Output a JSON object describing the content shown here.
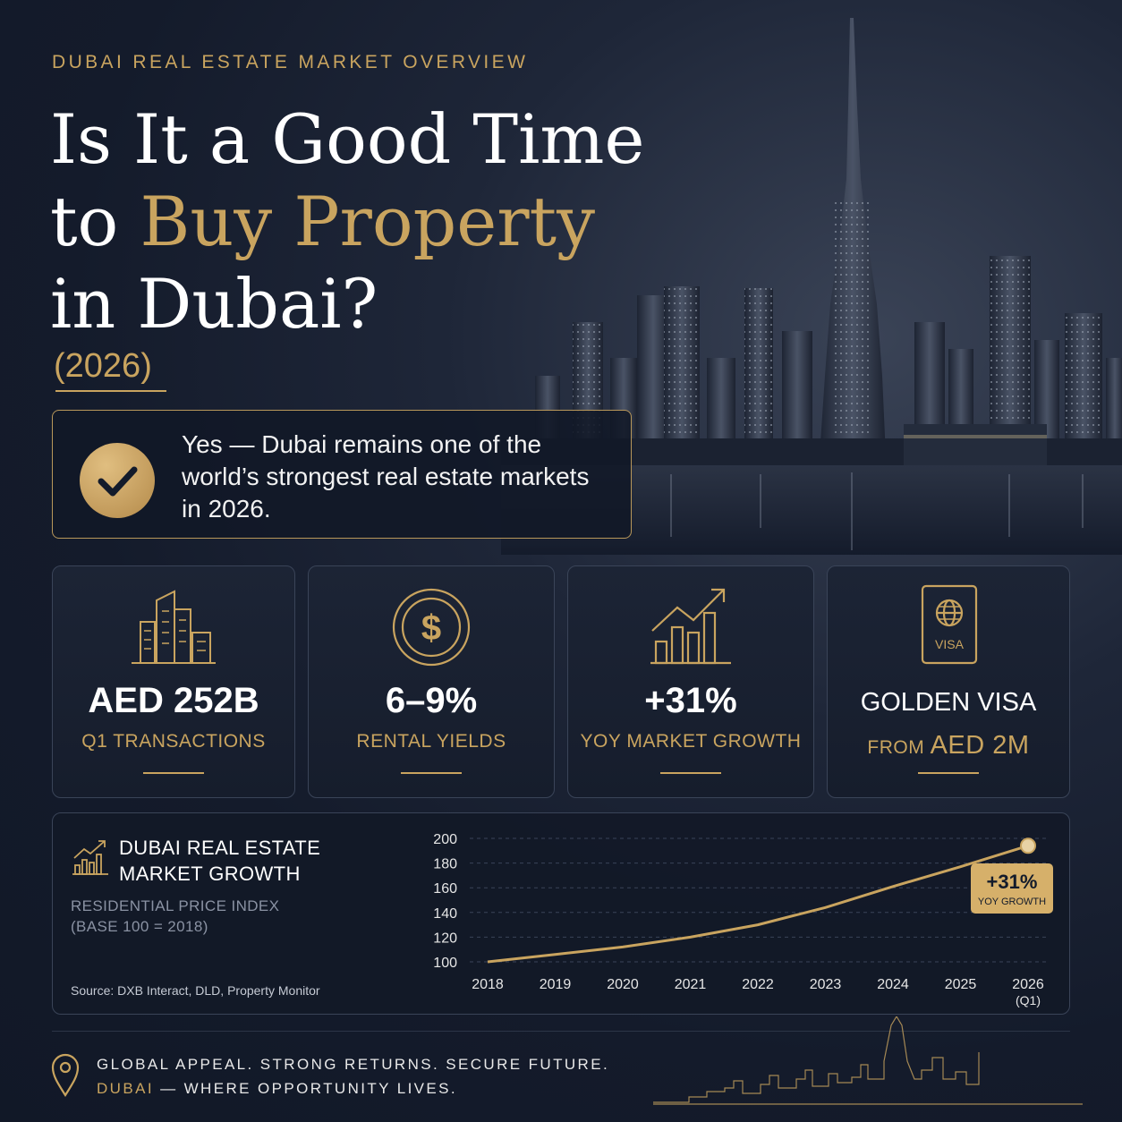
{
  "header": {
    "eyebrow": "DUBAI REAL ESTATE MARKET OVERVIEW",
    "headline_line1": "Is It a Good Time",
    "headline_line2_prefix": "to ",
    "headline_line2_highlight": "Buy Property",
    "headline_line3": "in Dubai?",
    "year": "(2026)"
  },
  "answer": {
    "icon": "check-icon",
    "text": "Yes — Dubai remains one of the world’s strongest real estate markets in 2026."
  },
  "stats": [
    {
      "icon": "buildings-icon",
      "value": "AED 252B",
      "label": "Q1 TRANSACTIONS"
    },
    {
      "icon": "dollar-coin-icon",
      "value": "6–9%",
      "label": "RENTAL YIELDS"
    },
    {
      "icon": "growth-chart-icon",
      "value": "+31%",
      "label": "YOY MARKET GROWTH"
    },
    {
      "icon": "passport-visa-icon",
      "value": "GOLDEN VISA",
      "label_prefix": "FROM ",
      "label_highlight": "AED 2M",
      "icon_text": "VISA"
    }
  ],
  "chart_panel": {
    "title_line1": "DUBAI REAL ESTATE",
    "title_line2": "MARKET GROWTH",
    "subtitle_line1": "RESIDENTIAL PRICE INDEX",
    "subtitle_line2": "(BASE 100 = 2018)",
    "source": "Source: DXB Interact, DLD, Property Monitor",
    "callout_value": "+31%",
    "callout_label": "YOY GROWTH"
  },
  "chart_data": {
    "type": "line",
    "title": "DUBAI REAL ESTATE MARKET GROWTH",
    "subtitle": "RESIDENTIAL PRICE INDEX (BASE 100 = 2018)",
    "categories": [
      "2018",
      "2019",
      "2020",
      "2021",
      "2022",
      "2023",
      "2024",
      "2025",
      "2026"
    ],
    "category_sublabels": [
      "",
      "",
      "",
      "",
      "",
      "",
      "",
      "",
      "(Q1)"
    ],
    "values": [
      100,
      106,
      112,
      120,
      130,
      144,
      161,
      177,
      194
    ],
    "ylim": [
      100,
      200
    ],
    "yticks": [
      100,
      120,
      140,
      160,
      180,
      200
    ],
    "grid": true,
    "line_color": "#c9a45f"
  },
  "footer": {
    "line1": "GLOBAL APPEAL. STRONG RETURNS. SECURE FUTURE.",
    "line2_highlight": "DUBAI",
    "line2_rest": " — WHERE OPPORTUNITY LIVES."
  },
  "colors": {
    "gold": "#c9a45f",
    "navy": "#131b2b",
    "text": "#ffffff"
  }
}
